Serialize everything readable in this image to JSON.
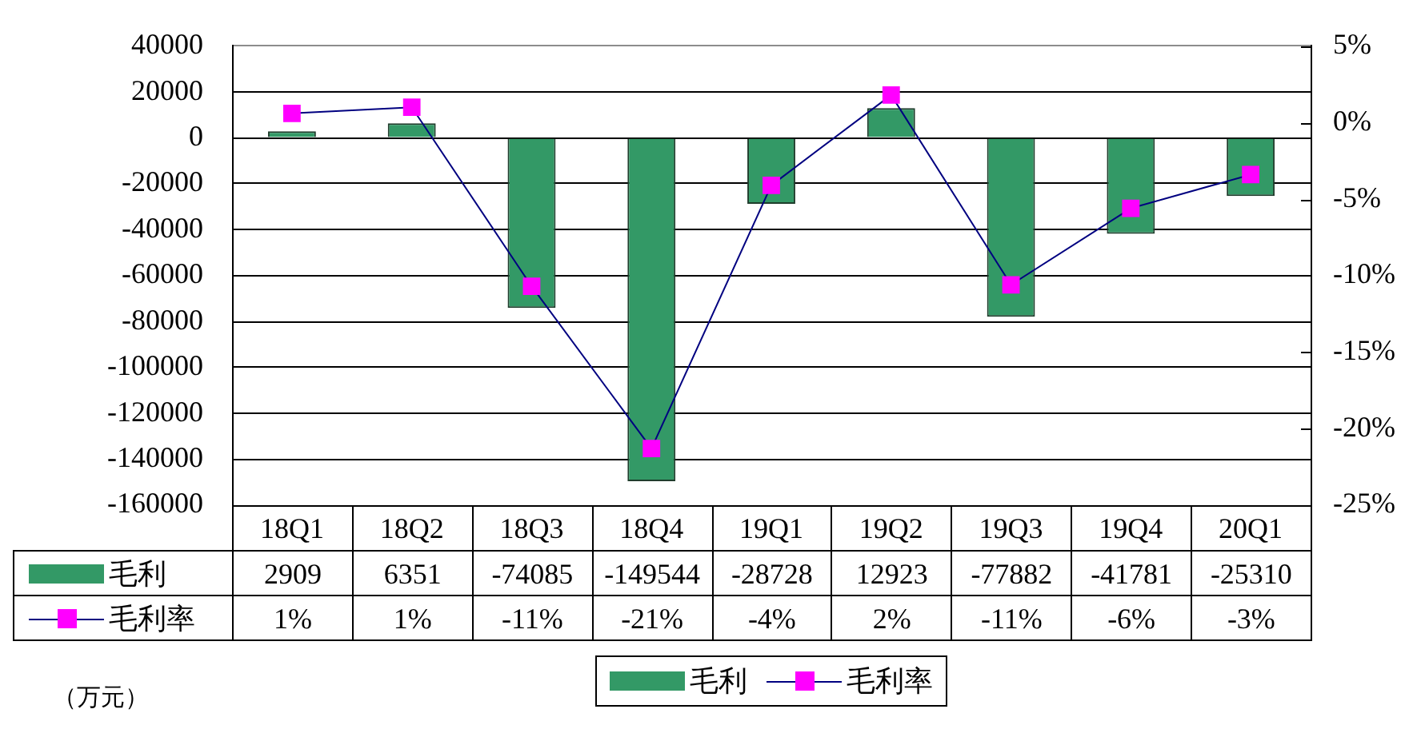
{
  "chart_data": {
    "type": "bar",
    "categories": [
      "18Q1",
      "18Q2",
      "18Q3",
      "18Q4",
      "19Q1",
      "19Q2",
      "19Q3",
      "19Q4",
      "20Q1"
    ],
    "series": [
      {
        "name": "毛利",
        "color": "#339966",
        "values": [
          2909,
          6351,
          -74085,
          -149544,
          -28728,
          12923,
          -77882,
          -41781,
          -25310
        ],
        "value_labels": [
          "2909",
          "6351",
          "-74085",
          "-149544",
          "-28728",
          "12923",
          "-77882",
          "-41781",
          "-25310"
        ]
      },
      {
        "name": "毛利率",
        "type": "line",
        "axis": "y2",
        "color": "#ff00ff",
        "values": [
          0.6,
          1.0,
          -10.7,
          -21.3,
          -4.1,
          1.8,
          -10.6,
          -5.6,
          -3.4
        ],
        "value_labels": [
          "1%",
          "1%",
          "-11%",
          "-21%",
          "-4%",
          "2%",
          "-11%",
          "-6%",
          "-3%"
        ]
      }
    ],
    "ylim": [
      -160000,
      40000
    ],
    "yticks": [
      -160000,
      -140000,
      -120000,
      -100000,
      -80000,
      -60000,
      -40000,
      -20000,
      0,
      20000,
      40000
    ],
    "y2lim": [
      -25,
      5
    ],
    "y2ticks": [
      {
        "value": -25,
        "label": "-25%"
      },
      {
        "value": -20,
        "label": "-20%"
      },
      {
        "value": -15,
        "label": "-15%"
      },
      {
        "value": -10,
        "label": "-10%"
      },
      {
        "value": -5,
        "label": "-5%"
      },
      {
        "value": 0,
        "label": "0%"
      },
      {
        "value": 5,
        "label": "5%"
      }
    ],
    "grid": "y",
    "legend": "bottom",
    "marker": "square",
    "annotations": [
      "（万元）"
    ]
  }
}
